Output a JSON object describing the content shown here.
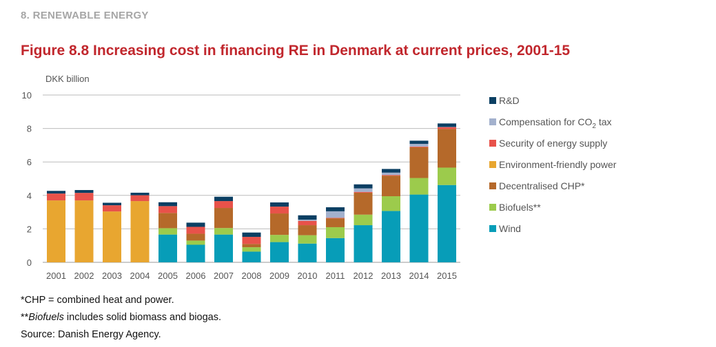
{
  "section": "8. RENEWABLE ENERGY",
  "title": "Figure 8.8 Increasing cost in financing RE in Denmark at current prices, 2001-15",
  "notes": {
    "chp": "*CHP = combined heat and power.",
    "biofuels_prefix": "**",
    "biofuels_italic": "Biofuels",
    "biofuels_rest": " includes solid biomass and biogas.",
    "source": "Source: Danish Energy Agency."
  },
  "chart_data": {
    "type": "bar",
    "stacked": true,
    "title": "Figure 8.8 Increasing cost in financing RE in Denmark at current prices, 2001-15",
    "ylabel": "DKK billion",
    "xlabel": "",
    "ylim": [
      0,
      10
    ],
    "yticks": [
      0,
      2,
      4,
      6,
      8,
      10
    ],
    "grid": true,
    "legend_position": "right",
    "categories": [
      "2001",
      "2002",
      "2003",
      "2004",
      "2005",
      "2006",
      "2007",
      "2008",
      "2009",
      "2010",
      "2011",
      "2012",
      "2013",
      "2014",
      "2015"
    ],
    "series": [
      {
        "name": "Wind",
        "color": "#079db8",
        "values": [
          0,
          0,
          0,
          0,
          1.66,
          1.05,
          1.66,
          0.64,
          1.21,
          1.12,
          1.45,
          2.22,
          3.07,
          4.05,
          4.62
        ]
      },
      {
        "name": "Biofuels**",
        "color": "#9ccb4c",
        "values": [
          0,
          0,
          0,
          0,
          0.38,
          0.25,
          0.39,
          0.26,
          0.43,
          0.5,
          0.65,
          0.63,
          0.88,
          0.99,
          1.04
        ]
      },
      {
        "name": "Decentralised CHP*",
        "color": "#b5692a",
        "values": [
          0,
          0,
          0,
          0,
          0.91,
          0.41,
          1.2,
          0.2,
          1.28,
          0.6,
          0.53,
          1.31,
          1.23,
          1.84,
          2.31
        ]
      },
      {
        "name": "Environment-friendly power",
        "color": "#e8a630",
        "values": [
          3.7,
          3.7,
          3.04,
          3.66,
          0,
          0,
          0,
          0,
          0,
          0,
          0,
          0,
          0,
          0,
          0
        ]
      },
      {
        "name": "Security of energy supply",
        "color": "#e8524a",
        "values": [
          0.41,
          0.45,
          0.37,
          0.35,
          0.41,
          0.41,
          0.41,
          0.42,
          0.41,
          0.26,
          0.03,
          0.05,
          0.04,
          0.04,
          0.11
        ]
      },
      {
        "name": "Compensation for CO2 tax",
        "label_main": "Compensation for CO",
        "label_sub": "2",
        "label_end": " tax",
        "color": "#a3b1cd",
        "values": [
          0,
          0,
          0,
          0,
          0,
          0,
          0,
          0,
          0,
          0.07,
          0.39,
          0.21,
          0.14,
          0.16,
          0.01
        ]
      },
      {
        "name": "R&D",
        "color": "#0b3f63",
        "values": [
          0.16,
          0.17,
          0.15,
          0.15,
          0.23,
          0.25,
          0.26,
          0.26,
          0.25,
          0.26,
          0.24,
          0.24,
          0.22,
          0.19,
          0.21
        ]
      }
    ]
  }
}
